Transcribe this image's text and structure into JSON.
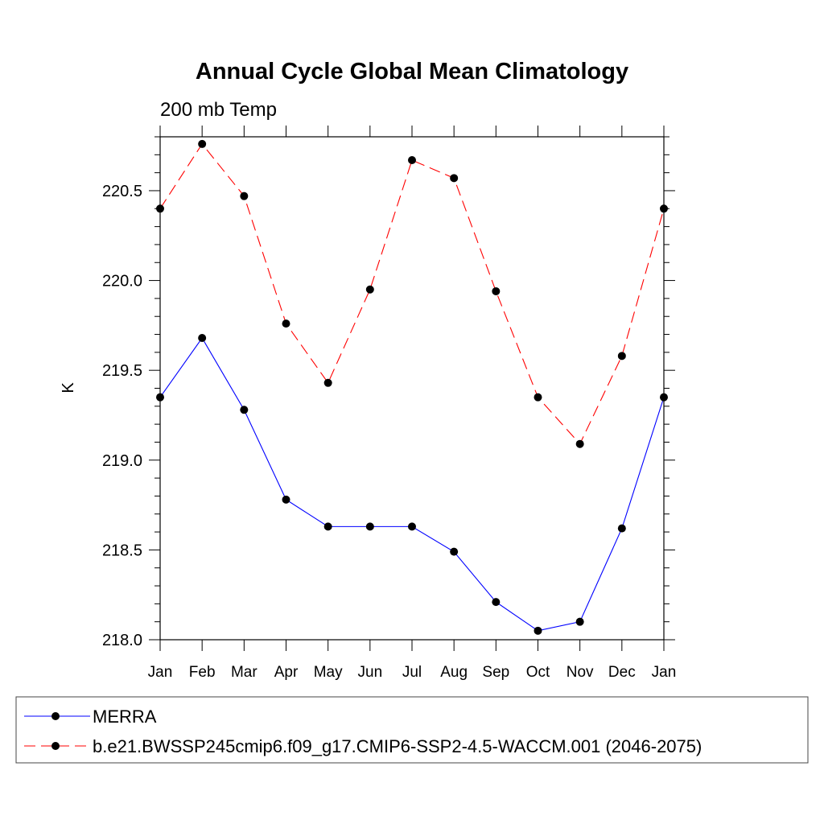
{
  "chart_data": {
    "type": "line",
    "title": "Annual Cycle Global Mean Climatology",
    "subtitle": "200 mb Temp",
    "xlabel": "",
    "ylabel": "K",
    "categories": [
      "Jan",
      "Feb",
      "Mar",
      "Apr",
      "May",
      "Jun",
      "Jul",
      "Aug",
      "Sep",
      "Oct",
      "Nov",
      "Dec",
      "Jan"
    ],
    "ylim": [
      218.0,
      220.8
    ],
    "yticks": [
      218.0,
      218.5,
      219.0,
      219.5,
      220.0,
      220.5
    ],
    "ytick_labels": [
      "218.0",
      "218.5",
      "219.0",
      "219.5",
      "220.0",
      "220.5"
    ],
    "grid": false,
    "legend_placement": "bottom",
    "series": [
      {
        "name": "MERRA",
        "color": "#0000ff",
        "dash": "solid",
        "values": [
          219.35,
          219.68,
          219.28,
          218.78,
          218.63,
          218.63,
          218.63,
          218.49,
          218.21,
          218.05,
          218.1,
          218.62,
          219.35
        ]
      },
      {
        "name": "b.e21.BWSSP245cmip6.f09_g17.CMIP6-SSP2-4.5-WACCM.001 (2046-2075)",
        "color": "#ff0000",
        "dash": "dashed",
        "values": [
          220.4,
          220.76,
          220.47,
          219.76,
          219.43,
          219.95,
          220.67,
          220.57,
          219.94,
          219.35,
          219.09,
          219.58,
          220.4
        ]
      }
    ]
  }
}
